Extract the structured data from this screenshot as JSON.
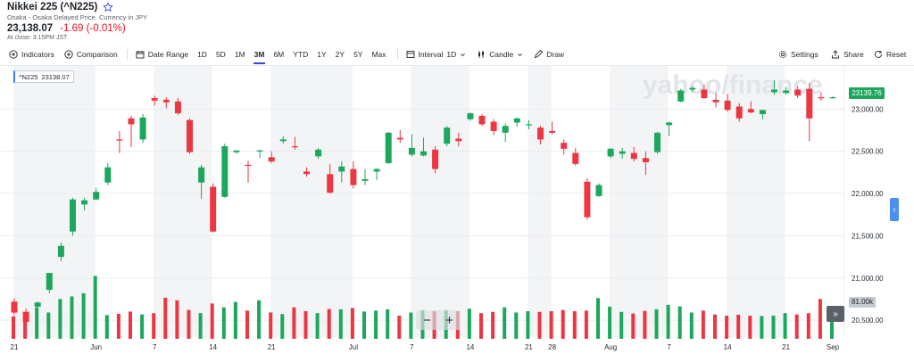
{
  "header": {
    "title": "Nikkei 225 (^N225)",
    "subtitle": "Osaka - Osaka Delayed Price. Currency in JPY",
    "price": "23,138.07",
    "change": "-1.69 (-0.01%)",
    "close_note": "At close: 3:15PM JST"
  },
  "toolbar": {
    "indicators": "Indicators",
    "comparison": "Comparison",
    "date_range": "Date Range",
    "ranges": [
      "1D",
      "5D",
      "1M",
      "3M",
      "6M",
      "YTD",
      "1Y",
      "2Y",
      "5Y",
      "Max"
    ],
    "active_range": "3M",
    "interval_label": "Interval",
    "interval_value": "1D",
    "candle": "Candle",
    "draw": "Draw",
    "settings": "Settings",
    "share": "Share",
    "reset": "Reset"
  },
  "tooltip": {
    "symbol": "^N225",
    "value": "23138.07"
  },
  "price_tag": "23139.76",
  "volume_tag": "81.00k",
  "watermark": "yahoo/finance",
  "colors": {
    "up": "#1da75c",
    "down": "#ec3642",
    "accent": "#3b4bd6",
    "band": "#f3f4f5"
  },
  "chart_data": {
    "type": "candlestick",
    "y_ticks": [
      "23,000.00",
      "22,500.00",
      "22,000.00",
      "21,500.00",
      "21,000.00",
      "20,500.00"
    ],
    "y_tick_values": [
      23000,
      22500,
      22000,
      21500,
      21000,
      20500
    ],
    "ylim": [
      20280,
      23510
    ],
    "x_ticks": [
      "21",
      "Jun",
      "7",
      "14",
      "21",
      "Jul",
      "7",
      "14",
      "21",
      "28",
      "Aug",
      "7",
      "14",
      "21",
      "Sep"
    ],
    "x_tick_index": [
      0,
      7,
      12,
      17,
      22,
      29,
      34,
      39,
      44,
      46,
      51,
      56,
      61,
      66,
      70
    ],
    "candles": [
      {
        "o": 20720,
        "h": 20760,
        "l": 20560,
        "c": 20590
      },
      {
        "o": 20600,
        "h": 20640,
        "l": 20450,
        "c": 20480
      },
      {
        "o": 20660,
        "h": 20720,
        "l": 20560,
        "c": 20710
      },
      {
        "o": 20860,
        "h": 21050,
        "l": 20820,
        "c": 21060
      },
      {
        "o": 21250,
        "h": 21420,
        "l": 21200,
        "c": 21380
      },
      {
        "o": 21550,
        "h": 21950,
        "l": 21500,
        "c": 21930
      },
      {
        "o": 21870,
        "h": 21950,
        "l": 21800,
        "c": 21920
      },
      {
        "o": 21930,
        "h": 22070,
        "l": 21920,
        "c": 22020
      },
      {
        "o": 22130,
        "h": 22360,
        "l": 22100,
        "c": 22310
      },
      {
        "o": 22640,
        "h": 22740,
        "l": 22480,
        "c": 22630
      },
      {
        "o": 22890,
        "h": 22920,
        "l": 22550,
        "c": 22820
      },
      {
        "o": 22640,
        "h": 22940,
        "l": 22600,
        "c": 22900
      },
      {
        "o": 23130,
        "h": 23160,
        "l": 23040,
        "c": 23100
      },
      {
        "o": 23110,
        "h": 23140,
        "l": 23010,
        "c": 23080
      },
      {
        "o": 23090,
        "h": 23130,
        "l": 22930,
        "c": 22950
      },
      {
        "o": 22870,
        "h": 22890,
        "l": 22470,
        "c": 22490
      },
      {
        "o": 22130,
        "h": 22340,
        "l": 21940,
        "c": 22310
      },
      {
        "o": 22080,
        "h": 22120,
        "l": 21540,
        "c": 21550
      },
      {
        "o": 21960,
        "h": 22590,
        "l": 21950,
        "c": 22560
      },
      {
        "o": 22490,
        "h": 22510,
        "l": 22470,
        "c": 22510
      },
      {
        "o": 22340,
        "h": 22390,
        "l": 22130,
        "c": 22330
      },
      {
        "o": 22500,
        "h": 22520,
        "l": 22420,
        "c": 22510
      },
      {
        "o": 22430,
        "h": 22500,
        "l": 22360,
        "c": 22380
      },
      {
        "o": 22620,
        "h": 22680,
        "l": 22590,
        "c": 22640
      },
      {
        "o": 22560,
        "h": 22670,
        "l": 22520,
        "c": 22550
      },
      {
        "o": 22260,
        "h": 22310,
        "l": 22200,
        "c": 22230
      },
      {
        "o": 22440,
        "h": 22540,
        "l": 22410,
        "c": 22520
      },
      {
        "o": 22230,
        "h": 22350,
        "l": 22000,
        "c": 22010
      },
      {
        "o": 22260,
        "h": 22380,
        "l": 22130,
        "c": 22320
      },
      {
        "o": 22290,
        "h": 22380,
        "l": 22060,
        "c": 22100
      },
      {
        "o": 22150,
        "h": 22290,
        "l": 22100,
        "c": 22170
      },
      {
        "o": 22260,
        "h": 22300,
        "l": 22160,
        "c": 22290
      },
      {
        "o": 22360,
        "h": 22730,
        "l": 22350,
        "c": 22720
      },
      {
        "o": 22660,
        "h": 22750,
        "l": 22600,
        "c": 22640
      },
      {
        "o": 22460,
        "h": 22700,
        "l": 22440,
        "c": 22540
      },
      {
        "o": 22450,
        "h": 22660,
        "l": 22440,
        "c": 22500
      },
      {
        "o": 22520,
        "h": 22560,
        "l": 22240,
        "c": 22290
      },
      {
        "o": 22590,
        "h": 22800,
        "l": 22560,
        "c": 22780
      },
      {
        "o": 22650,
        "h": 22720,
        "l": 22560,
        "c": 22620
      },
      {
        "o": 22880,
        "h": 22960,
        "l": 22860,
        "c": 22950
      },
      {
        "o": 22920,
        "h": 22940,
        "l": 22800,
        "c": 22820
      },
      {
        "o": 22850,
        "h": 22880,
        "l": 22690,
        "c": 22740
      },
      {
        "o": 22720,
        "h": 22830,
        "l": 22610,
        "c": 22800
      },
      {
        "o": 22840,
        "h": 22900,
        "l": 22790,
        "c": 22890
      },
      {
        "o": 22810,
        "h": 22870,
        "l": 22760,
        "c": 22820
      },
      {
        "o": 22780,
        "h": 22800,
        "l": 22580,
        "c": 22640
      },
      {
        "o": 22740,
        "h": 22850,
        "l": 22700,
        "c": 22720
      },
      {
        "o": 22600,
        "h": 22640,
        "l": 22460,
        "c": 22530
      },
      {
        "o": 22480,
        "h": 22540,
        "l": 22330,
        "c": 22350
      },
      {
        "o": 22140,
        "h": 22180,
        "l": 21690,
        "c": 21720
      },
      {
        "o": 21970,
        "h": 22120,
        "l": 21960,
        "c": 22100
      },
      {
        "o": 22440,
        "h": 22540,
        "l": 22420,
        "c": 22530
      },
      {
        "o": 22470,
        "h": 22540,
        "l": 22410,
        "c": 22500
      },
      {
        "o": 22480,
        "h": 22550,
        "l": 22380,
        "c": 22410
      },
      {
        "o": 22420,
        "h": 22500,
        "l": 22220,
        "c": 22370
      },
      {
        "o": 22490,
        "h": 22730,
        "l": 22470,
        "c": 22720
      },
      {
        "o": 22810,
        "h": 22850,
        "l": 22680,
        "c": 22840
      },
      {
        "o": 23090,
        "h": 23240,
        "l": 23080,
        "c": 23220
      },
      {
        "o": 23230,
        "h": 23270,
        "l": 23200,
        "c": 23250
      },
      {
        "o": 23230,
        "h": 23290,
        "l": 23120,
        "c": 23130
      },
      {
        "o": 23110,
        "h": 23190,
        "l": 23020,
        "c": 23080
      },
      {
        "o": 23100,
        "h": 23180,
        "l": 22970,
        "c": 22990
      },
      {
        "o": 23030,
        "h": 23070,
        "l": 22850,
        "c": 22890
      },
      {
        "o": 23000,
        "h": 23090,
        "l": 22950,
        "c": 22960
      },
      {
        "o": 22940,
        "h": 22990,
        "l": 22880,
        "c": 22990
      },
      {
        "o": 23200,
        "h": 23340,
        "l": 23170,
        "c": 23230
      },
      {
        "o": 23190,
        "h": 23260,
        "l": 23170,
        "c": 23220
      },
      {
        "o": 23230,
        "h": 23270,
        "l": 23130,
        "c": 23160
      },
      {
        "o": 23240,
        "h": 23310,
        "l": 22620,
        "c": 22890
      },
      {
        "o": 23140,
        "h": 23200,
        "l": 23100,
        "c": 23138.07
      },
      {
        "o": 23135,
        "h": 23150,
        "l": 23125,
        "c": 23139.76
      }
    ],
    "volume_max_k": 200,
    "volumes": [
      70,
      66,
      98,
      82,
      124,
      132,
      142,
      196,
      74,
      78,
      85,
      76,
      80,
      128,
      120,
      90,
      80,
      110,
      98,
      115,
      88,
      120,
      82,
      77,
      98,
      86,
      80,
      93,
      92,
      96,
      85,
      88,
      92,
      72,
      82,
      89,
      86,
      89,
      86,
      94,
      80,
      84,
      98,
      82,
      86,
      84,
      86,
      90,
      86,
      88,
      127,
      100,
      84,
      79,
      87,
      92,
      106,
      101,
      82,
      88,
      76,
      72,
      75,
      72,
      71,
      72,
      80,
      76,
      80,
      124,
      81
    ]
  }
}
